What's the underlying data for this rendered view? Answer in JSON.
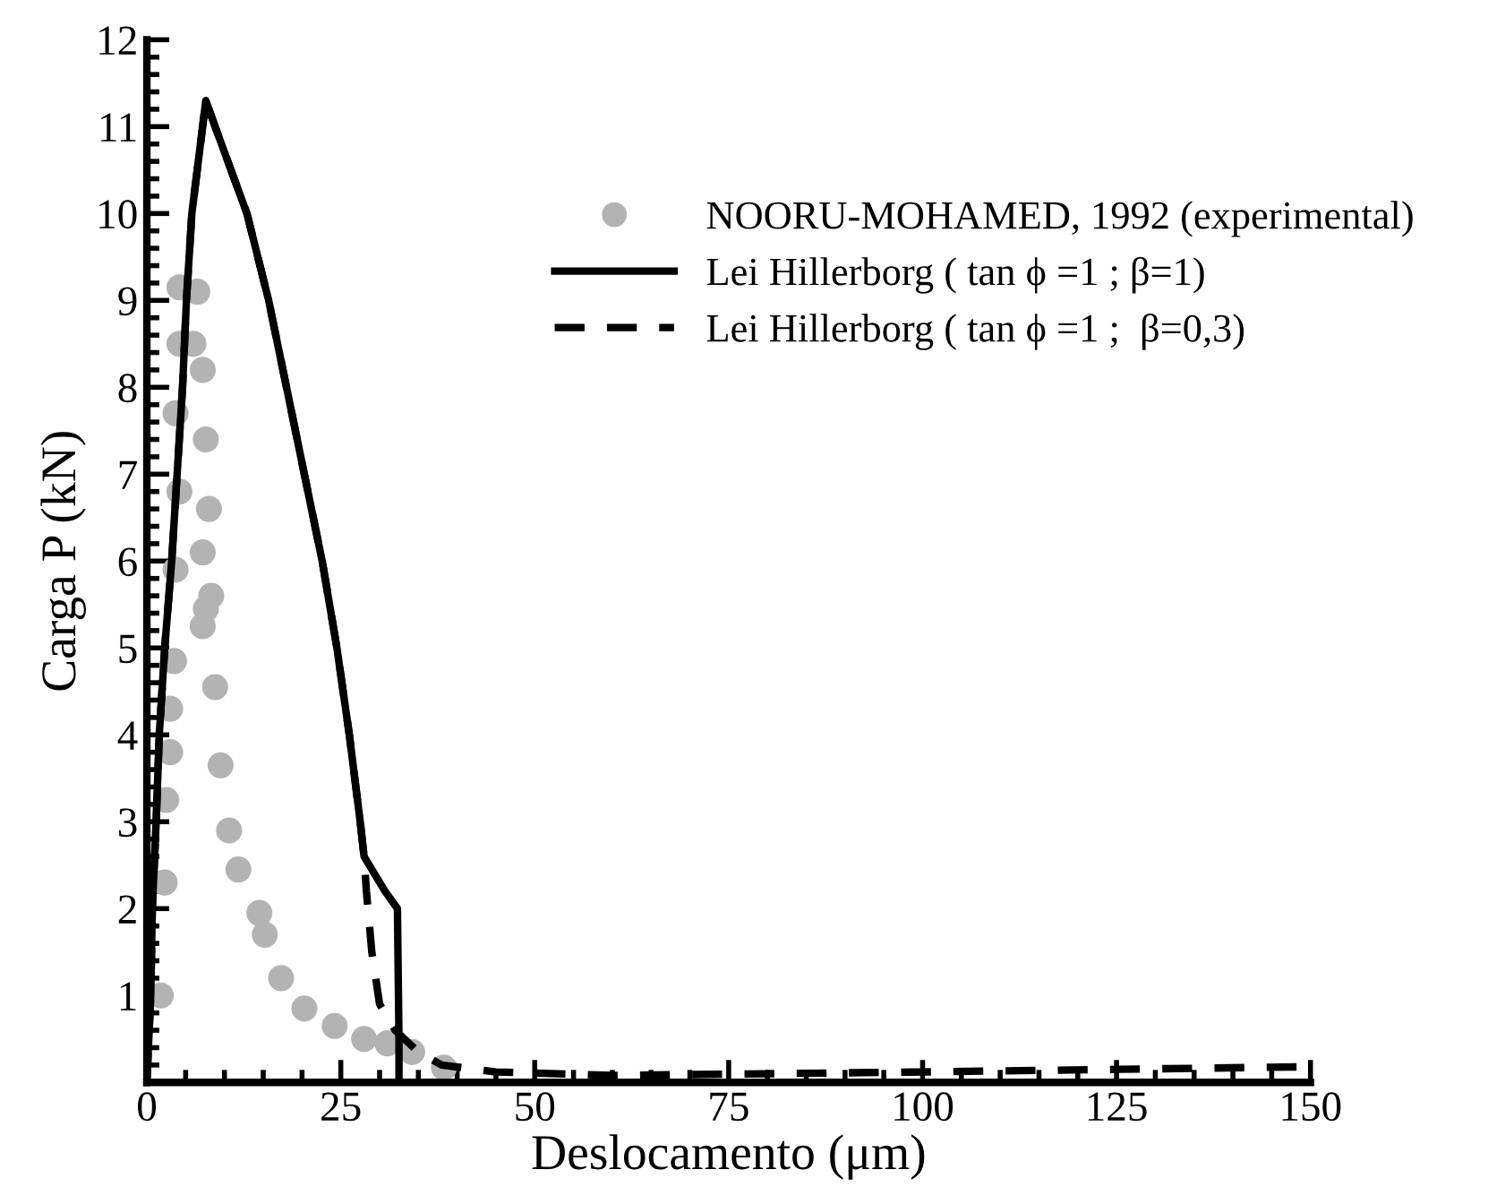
{
  "chart_data": {
    "type": "line",
    "xlabel": "Deslocamento (μm)",
    "ylabel": "Carga P (kN)",
    "xlim": [
      0,
      150
    ],
    "ylim": [
      0,
      12
    ],
    "xticks": [
      0,
      25,
      50,
      75,
      100,
      125,
      150
    ],
    "yticks": [
      1,
      2,
      3,
      4,
      5,
      6,
      7,
      8,
      9,
      10,
      11,
      12
    ],
    "grid": false,
    "legend": "top right",
    "series": [
      {
        "name": "NOORU-MOHAMED, 1992 (experimental)",
        "type": "scatter",
        "marker": "circle",
        "color": "#b3b3b3",
        "x": [
          4.2,
          6.5,
          6,
          4.2,
          7.2,
          3.7,
          7.6,
          4.2,
          8,
          7.2,
          3.7,
          8.3,
          7.6,
          7.2,
          3.5,
          8.8,
          3,
          3,
          9.5,
          2.5,
          10.6,
          11.8,
          2.3,
          14.5,
          15.2,
          17.3,
          20.3,
          24.2,
          28,
          31,
          34.2,
          38.3,
          1.8
        ],
        "values": [
          9.15,
          9.1,
          8.5,
          8.5,
          8.2,
          7.7,
          7.4,
          6.8,
          6.6,
          6.1,
          5.9,
          5.6,
          5.45,
          5.25,
          4.85,
          4.55,
          4.3,
          3.8,
          3.65,
          3.25,
          2.9,
          2.45,
          2.3,
          1.95,
          1.7,
          1.2,
          0.85,
          0.65,
          0.5,
          0.45,
          0.35,
          0.17,
          1.0
        ]
      },
      {
        "name": "Lei Hillerborg ( tan ϕ =1 ; β=1)",
        "line_style": "solid",
        "color": "#000000",
        "x": [
          0,
          0.5,
          0.7,
          1.2,
          1.6,
          2.3,
          3.2,
          3.9,
          4.6,
          5.1,
          5.8,
          7.6,
          8.8,
          12.9,
          15.7,
          18,
          20.3,
          22.6,
          24.5,
          26.1,
          27.5,
          28,
          30.7,
          32.3,
          32.5,
          32.5
        ],
        "values": [
          0,
          1,
          2,
          3,
          4,
          5,
          6,
          7,
          8,
          9,
          10,
          11.3,
          11,
          10,
          9,
          8,
          7,
          6,
          5,
          4,
          3,
          2.6,
          2.2,
          2,
          0.5,
          0
        ]
      },
      {
        "name": "Lei Hillerborg ( tan ϕ =1 ;  β=0,3)",
        "line_style": "dashed",
        "color": "#000000",
        "x": [
          0,
          0.5,
          0.7,
          1.2,
          1.6,
          2.3,
          3.2,
          3.9,
          4.6,
          5.1,
          5.8,
          7.6,
          8.8,
          12.9,
          15.7,
          18,
          20.3,
          22.6,
          24.5,
          26.1,
          27.5,
          28,
          28.3,
          29,
          30,
          32,
          35,
          38,
          45,
          60,
          80,
          100,
          125,
          150
        ],
        "values": [
          0,
          1,
          2,
          3,
          4,
          5,
          6,
          7,
          8,
          9,
          10,
          11.3,
          11,
          10,
          9,
          8,
          7,
          6,
          5,
          4,
          3,
          2.6,
          2.2,
          1.5,
          0.9,
          0.6,
          0.35,
          0.2,
          0.12,
          0.08,
          0.1,
          0.12,
          0.15,
          0.18
        ]
      }
    ]
  }
}
